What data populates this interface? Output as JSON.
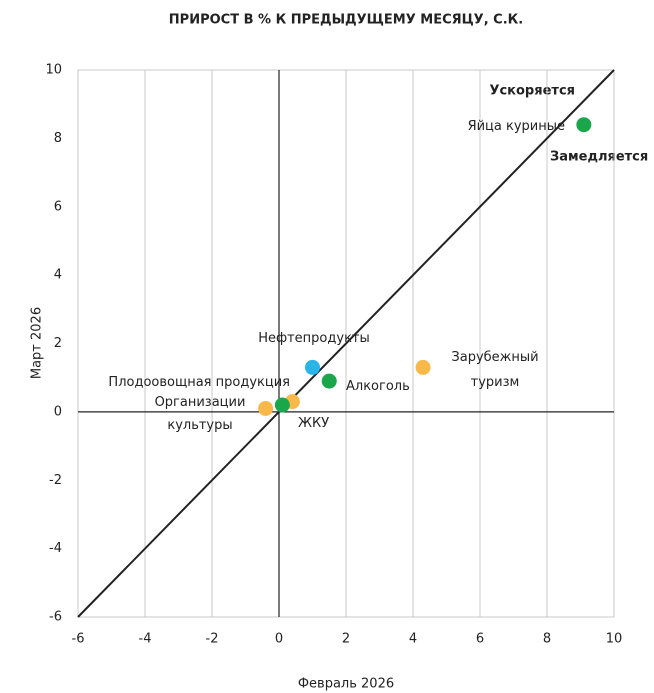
{
  "chart_data": {
    "type": "scatter",
    "title": "ПРИРОСТ В % К ПРЕДЫДУЩЕМУ МЕСЯЦУ, С.К.",
    "x_label": "Февраль 2026",
    "y_label": "Март 2026",
    "xlim": [
      -6,
      10
    ],
    "ylim": [
      -6,
      10
    ],
    "xticks": [
      -6,
      -4,
      -2,
      0,
      2,
      4,
      6,
      8,
      10
    ],
    "yticks": [
      -6,
      -4,
      -2,
      0,
      2,
      4,
      6,
      8,
      10
    ],
    "grid": "x",
    "diagonal": true,
    "annotations": [
      "Ускоряется",
      "Замедляется"
    ],
    "points": [
      {
        "label": [
          "Яйца куриные"
        ],
        "x": 9.1,
        "y": 8.4,
        "color": "#1aa64a"
      },
      {
        "label": [
          "Нефтепродукты"
        ],
        "x": 1.0,
        "y": 1.3,
        "color": "#2ab4e8"
      },
      {
        "label": [
          "Алкоголь"
        ],
        "x": 1.5,
        "y": 0.9,
        "color": "#1aa64a"
      },
      {
        "label": [
          "Зарубежный",
          "туризм"
        ],
        "x": 4.3,
        "y": 1.3,
        "color": "#f9b84a"
      },
      {
        "label": [
          "Плодоовощная продукция"
        ],
        "x": 0.4,
        "y": 0.3,
        "color": "#f9b84a"
      },
      {
        "label": [
          "Организации",
          "культуры"
        ],
        "x": -0.4,
        "y": 0.1,
        "color": "#f9b84a"
      },
      {
        "label": [
          "ЖКУ"
        ],
        "x": 0.1,
        "y": 0.2,
        "color": "#1aa64a"
      }
    ]
  }
}
